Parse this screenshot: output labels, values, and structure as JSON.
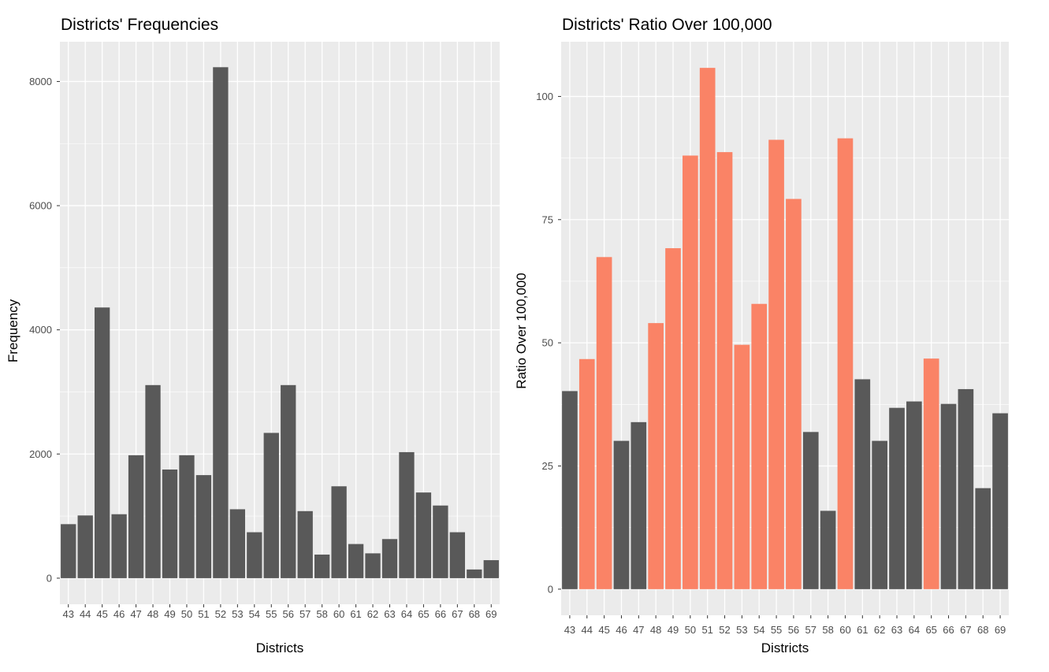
{
  "charts": [
    {
      "title": "Districts' Frequencies",
      "xlabel": "Districts",
      "ylabel": "Frequency"
    },
    {
      "title": "Districts' Ratio Over 100,000",
      "xlabel": "Districts",
      "ylabel": "Ratio Over 100,000"
    }
  ],
  "colors": {
    "panel_background": "#ebebeb",
    "grid": "#ffffff",
    "dark_bar": "#595959",
    "highlight_bar": "#fa8366"
  },
  "chart_data": [
    {
      "type": "bar",
      "title": "Districts' Frequencies",
      "xlabel": "Districts",
      "ylabel": "Frequency",
      "categories": [
        "43",
        "44",
        "45",
        "46",
        "47",
        "48",
        "49",
        "50",
        "51",
        "52",
        "53",
        "54",
        "55",
        "56",
        "57",
        "58",
        "60",
        "61",
        "62",
        "63",
        "64",
        "65",
        "66",
        "67",
        "68",
        "69"
      ],
      "values": [
        870,
        1010,
        4360,
        1030,
        1980,
        3110,
        1750,
        1980,
        1660,
        8230,
        1110,
        740,
        2340,
        3110,
        1080,
        380,
        1480,
        550,
        400,
        630,
        2030,
        1380,
        1170,
        740,
        140,
        290
      ],
      "yticks": [
        0,
        2000,
        4000,
        6000,
        8000
      ],
      "ylim": [
        -420,
        8640
      ],
      "grid": true,
      "legend": "none"
    },
    {
      "type": "bar",
      "title": "Districts' Ratio Over 100,000",
      "xlabel": "Districts",
      "ylabel": "Ratio Over 100,000",
      "categories": [
        "43",
        "44",
        "45",
        "46",
        "47",
        "48",
        "49",
        "50",
        "51",
        "52",
        "53",
        "54",
        "55",
        "56",
        "57",
        "58",
        "60",
        "61",
        "62",
        "63",
        "64",
        "65",
        "66",
        "67",
        "68",
        "69"
      ],
      "values": [
        40.2,
        46.7,
        67.4,
        30.1,
        33.9,
        54.0,
        69.2,
        88.0,
        105.8,
        88.7,
        49.6,
        57.9,
        91.2,
        79.2,
        31.9,
        15.9,
        91.5,
        42.6,
        30.1,
        36.8,
        38.1,
        46.8,
        37.6,
        40.6,
        20.5,
        35.7
      ],
      "highlighted": [
        false,
        true,
        true,
        false,
        false,
        true,
        true,
        true,
        true,
        true,
        true,
        true,
        true,
        true,
        false,
        false,
        true,
        false,
        false,
        false,
        false,
        true,
        false,
        false,
        false,
        false
      ],
      "yticks": [
        0,
        25,
        50,
        75,
        100
      ],
      "ylim": [
        -5.3,
        111.1
      ],
      "grid": true,
      "legend": "none"
    }
  ]
}
